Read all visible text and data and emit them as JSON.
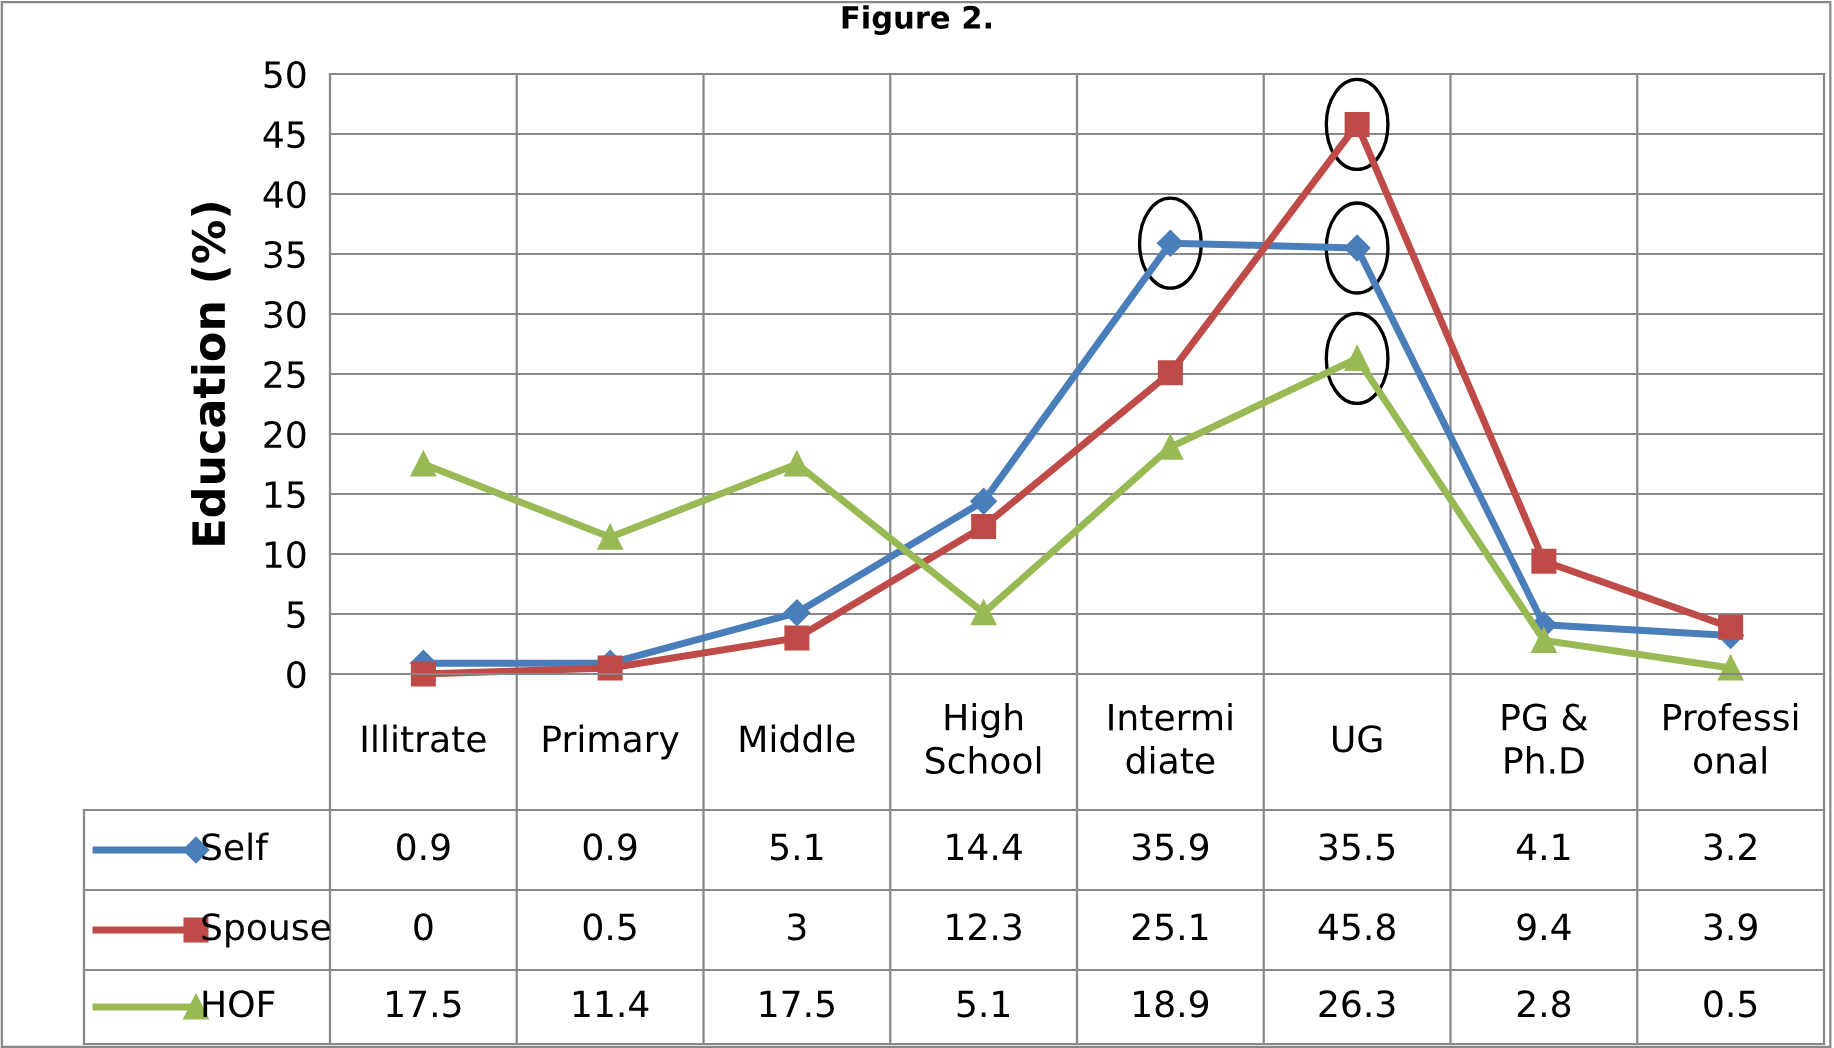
{
  "chart_data": {
    "type": "line",
    "title": "Figure 2.",
    "ylabel": "Education (%)",
    "categories": [
      "Illitrate",
      "Primary",
      "Middle",
      "High\nSchool",
      "Intermi\ndiate",
      "UG",
      "PG &\nPh.D",
      "Professi\nonal"
    ],
    "series": [
      {
        "name": "Self",
        "color": "#4a7ebb",
        "marker": "diamond",
        "values": [
          0.9,
          0.9,
          5.1,
          14.4,
          35.9,
          35.5,
          4.1,
          3.2
        ]
      },
      {
        "name": "Spouse",
        "color": "#be4b48",
        "marker": "square",
        "values": [
          0,
          0.5,
          3,
          12.3,
          25.1,
          45.8,
          9.4,
          3.9
        ]
      },
      {
        "name": "HOF",
        "color": "#98b954",
        "marker": "triangle",
        "values": [
          17.5,
          11.4,
          17.5,
          5.1,
          18.9,
          26.3,
          2.8,
          0.5
        ]
      }
    ],
    "ylim": [
      0,
      50
    ],
    "yticks": [
      0,
      5,
      10,
      15,
      20,
      25,
      30,
      35,
      40,
      45,
      50
    ],
    "grid": "y",
    "data_labels": true,
    "legend": "bottom left",
    "line_style": "solid"
  }
}
